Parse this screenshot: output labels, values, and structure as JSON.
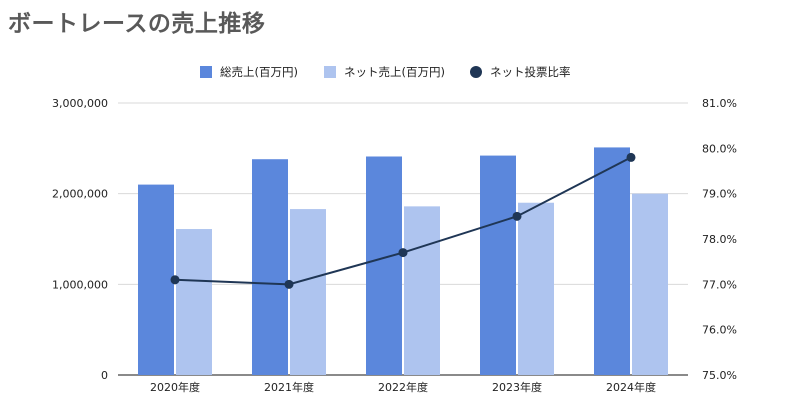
{
  "chart_data": {
    "type": "bar",
    "title": "ボートレースの売上推移",
    "categories": [
      "2020年度",
      "2021年度",
      "2022年度",
      "2023年度",
      "2024年度"
    ],
    "series": [
      {
        "name": "総売上(百万円)",
        "kind": "bar",
        "axis": "left",
        "color": "#5b87dc",
        "values": [
          2100000,
          2380000,
          2410000,
          2420000,
          2510000
        ]
      },
      {
        "name": "ネット売上(百万円)",
        "kind": "bar",
        "axis": "left",
        "color": "#aec4ef",
        "values": [
          1610000,
          1830000,
          1860000,
          1900000,
          2000000
        ]
      },
      {
        "name": "ネット投票比率",
        "kind": "line",
        "axis": "right",
        "color": "#1f3655",
        "values": [
          77.1,
          77.0,
          77.7,
          78.5,
          79.8
        ]
      }
    ],
    "y_left": {
      "ylim": [
        0,
        3000000
      ],
      "ticks": [
        0,
        1000000,
        2000000,
        3000000
      ],
      "tick_labels": [
        "0",
        "1,000,000",
        "2,000,000",
        "3,000,000"
      ]
    },
    "y_right": {
      "ylim": [
        75.0,
        81.0
      ],
      "ticks": [
        75,
        76,
        77,
        78,
        79,
        80,
        81
      ],
      "tick_labels": [
        "75.0%",
        "76.0%",
        "77.0%",
        "78.0%",
        "79.0%",
        "80.0%",
        "81.0%"
      ]
    },
    "grid": true,
    "legend_position": "top-center"
  }
}
